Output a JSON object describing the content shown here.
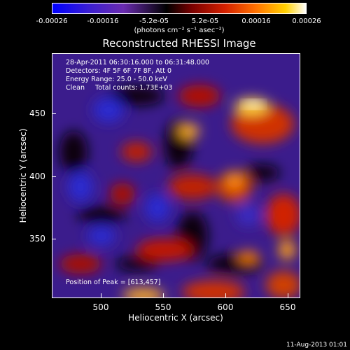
{
  "colorbar": {
    "ticks": [
      "-0.00026",
      "-0.00016",
      "-5.2e-05",
      "5.2e-05",
      "0.00016",
      "0.00026"
    ],
    "units": "(photons cm⁻² s⁻¹ asec⁻²)",
    "colors": [
      "#0000ff",
      "#6a2bb0",
      "#000000",
      "#d42000",
      "#ffd000",
      "#ffffff"
    ]
  },
  "title": "Reconstructed RHESSI Image",
  "info": {
    "time_range": "28-Apr-2011 06:30:16.000 to 06:31:48.000",
    "detectors": "Detectors: 4F 5F 6F 7F 8F, Att 0",
    "energy": "Energy Range: 25.0 - 50.0 keV",
    "clean": "Clean     Total counts: 1.73E+03",
    "peak": "Position of Peak = [613,457]"
  },
  "axes": {
    "xlabel": "Heliocentric X (arcsec)",
    "ylabel": "Heliocentric Y (arcsec)",
    "xticks": [
      "500",
      "550",
      "600",
      "650"
    ],
    "yticks": [
      "450",
      "400",
      "350"
    ]
  },
  "datestamp": "11-Aug-2013 01:01"
}
